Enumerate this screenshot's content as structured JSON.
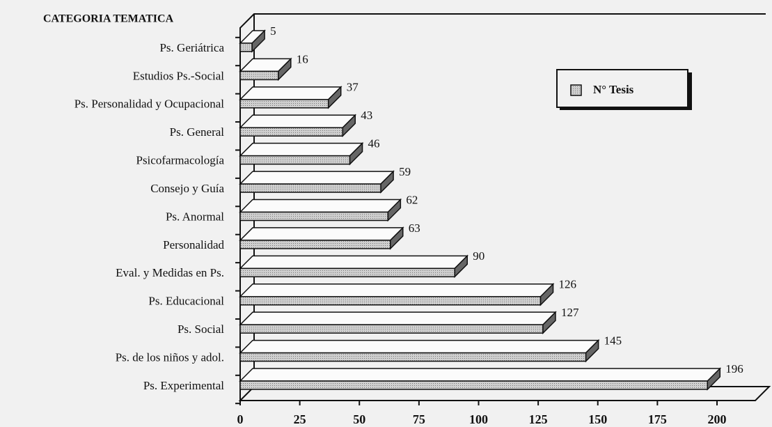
{
  "chart_data": {
    "type": "bar3d_horizontal",
    "title": "CATEGORIA TEMATICA",
    "categories": [
      "Ps. Geriátrica",
      "Estudios Ps.-Social",
      "Ps. Personalidad y Ocupacional",
      "Ps. General",
      "Psicofarmacología",
      "Consejo y Guía",
      "Ps. Anormal",
      "Personalidad",
      "Eval. y Medidas en Ps.",
      "Ps. Educacional",
      "Ps. Social",
      "Ps. de los niños  y adol.",
      "Ps. Experimental"
    ],
    "series": [
      {
        "name": "N° Tesis",
        "color": "#cfcfcf",
        "values": [
          5,
          16,
          37,
          43,
          46,
          59,
          62,
          63,
          90,
          126,
          127,
          145,
          196
        ]
      }
    ],
    "xlim": [
      0,
      220
    ],
    "xticks": [
      0,
      25,
      50,
      75,
      100,
      125,
      150,
      175,
      200
    ],
    "legend": "upper right"
  }
}
